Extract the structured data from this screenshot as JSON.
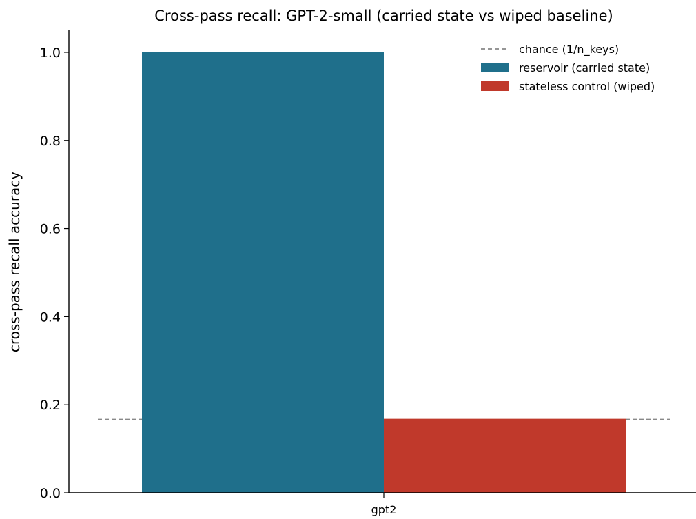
{
  "chart_data": {
    "type": "bar",
    "title": "Cross-pass recall: GPT-2-small (carried state vs wiped baseline)",
    "xlabel": "",
    "ylabel": "cross-pass recall accuracy",
    "categories": [
      "gpt2"
    ],
    "series": [
      {
        "name": "reservoir (carried state)",
        "values": [
          1.0
        ],
        "color": "#1f6f8b"
      },
      {
        "name": "stateless control (wiped)",
        "values": [
          0.168
        ],
        "color": "#c0392b"
      }
    ],
    "reference_line": {
      "name": "chance (1/n_keys)",
      "value": 0.1667,
      "color": "#888888",
      "style": "dashed"
    },
    "ylim": [
      0,
      1.05
    ],
    "yticks": [
      0.0,
      0.2,
      0.4,
      0.6,
      0.8,
      1.0
    ],
    "ytick_labels": [
      "0.0",
      "0.2",
      "0.4",
      "0.6",
      "0.8",
      "1.0"
    ],
    "grid": false,
    "legend_position": "top-right"
  }
}
